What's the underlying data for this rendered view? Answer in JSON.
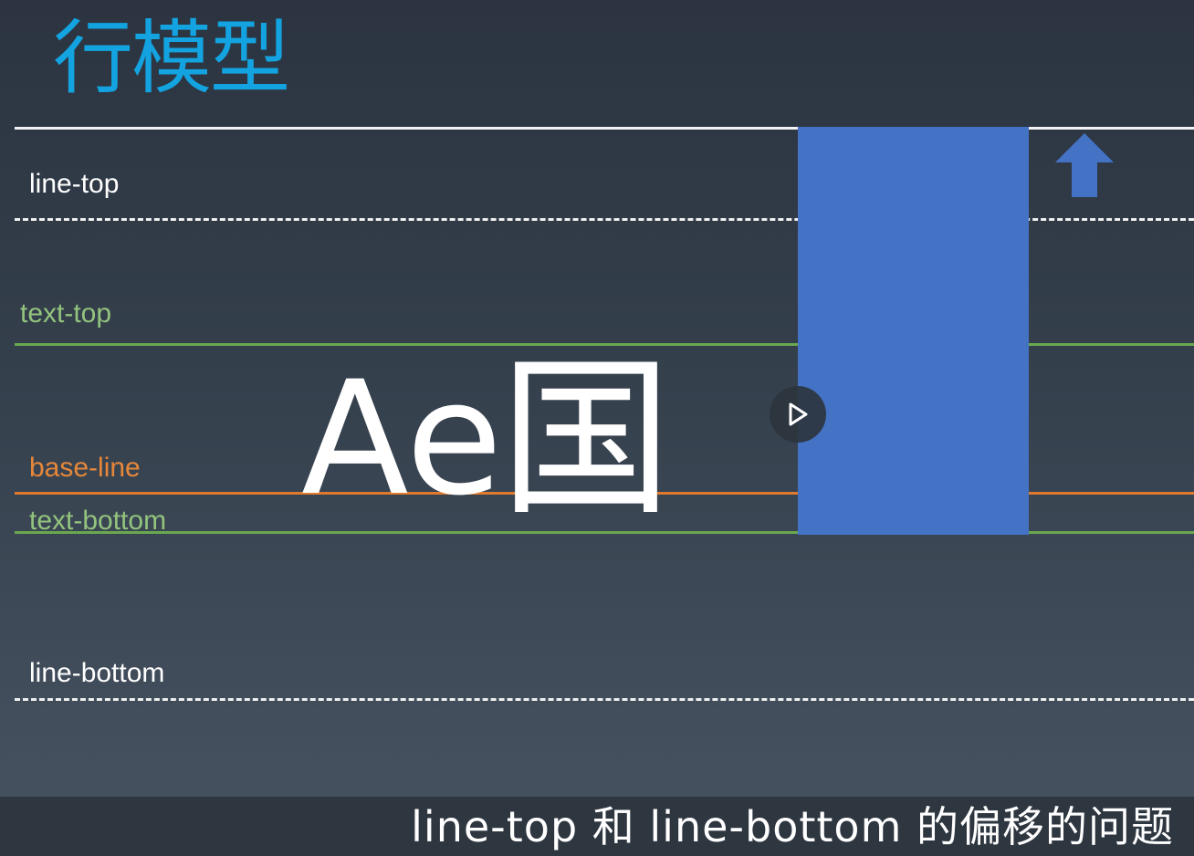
{
  "slide": {
    "title": "行模型",
    "labels": {
      "line_top": "line-top",
      "text_top": "text-top",
      "base_line": "base-line",
      "text_bottom": "text-bottom",
      "line_bottom": "line-bottom"
    },
    "sample_latin": "Ae",
    "sample_cjk": "国",
    "colors": {
      "title": "#13a3e0",
      "line_white": "#f2f2f2",
      "text_line": "#6aa84f",
      "base_line": "#e07a2e",
      "block": "#4472c4"
    }
  },
  "video": {
    "play_icon": "play-icon",
    "arrow_icon": "up-arrow-icon"
  },
  "subtitle": {
    "text": "line-top 和 line-bottom 的偏移的问题"
  }
}
